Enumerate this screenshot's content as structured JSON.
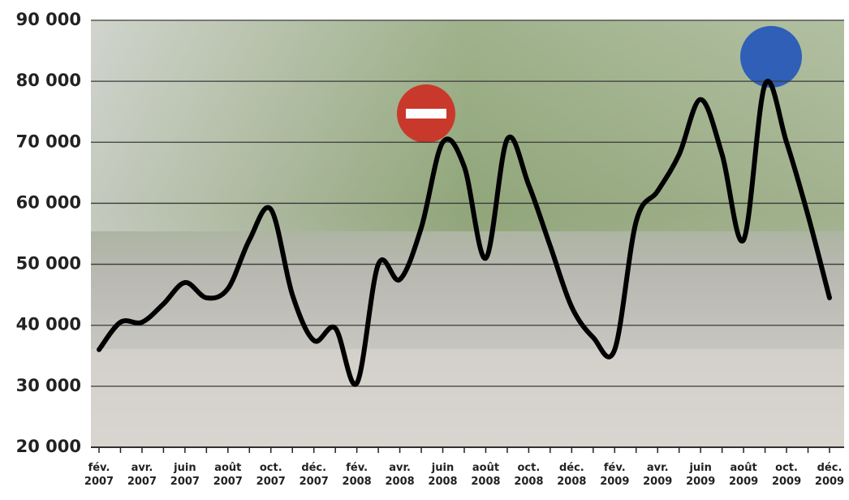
{
  "chart_data": {
    "type": "line",
    "categories": [
      "fév. 2007",
      null,
      "avr. 2007",
      null,
      "juin 2007",
      null,
      "août 2007",
      null,
      "oct. 2007",
      null,
      "déc. 2007",
      null,
      "fév. 2008",
      null,
      "avr. 2008",
      null,
      "juin 2008",
      null,
      "août 2008",
      null,
      "oct. 2008",
      null,
      "déc. 2008",
      null,
      "fév. 2009",
      null,
      "avr. 2009",
      null,
      "juin 2009",
      null,
      "août 2009",
      null,
      "oct. 2009",
      null,
      "déc. 2009"
    ],
    "values": [
      36000,
      40500,
      40500,
      43500,
      47000,
      44500,
      46000,
      54000,
      59000,
      45000,
      37500,
      39500,
      30500,
      50000,
      47500,
      56000,
      70000,
      66000,
      51000,
      70500,
      63000,
      53000,
      43000,
      38000,
      36000,
      57000,
      62000,
      68000,
      77000,
      68000,
      54000,
      79500,
      70000,
      58000,
      44500
    ],
    "color": "#000000",
    "ylim": [
      20000,
      90000
    ],
    "yticks": [
      {
        "value": 20000,
        "label": "20 000"
      },
      {
        "value": 30000,
        "label": "30 000"
      },
      {
        "value": 40000,
        "label": "40 000"
      },
      {
        "value": 50000,
        "label": "50 000"
      },
      {
        "value": 60000,
        "label": "60 000"
      },
      {
        "value": 70000,
        "label": "70 000"
      },
      {
        "value": 80000,
        "label": "80 000"
      },
      {
        "value": 90000,
        "label": "90 000"
      }
    ],
    "grid": true
  }
}
